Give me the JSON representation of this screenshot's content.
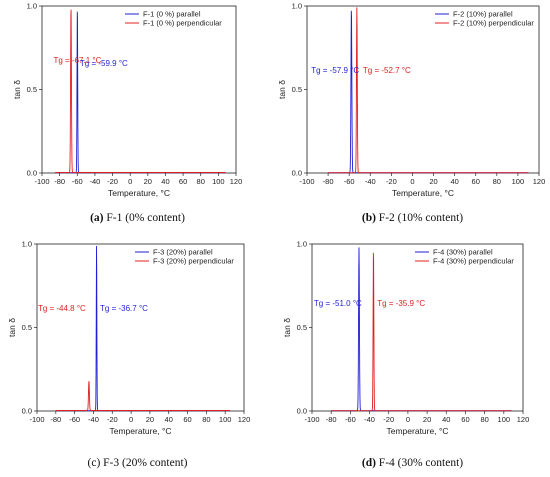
{
  "chart_data": [
    {
      "type": "line",
      "panel": "a",
      "caption_label": "(a)",
      "caption_text": "F-1 (0% content)",
      "xlabel": "Temperature, °C",
      "ylabel": "tan δ",
      "xlim": [
        -100,
        120
      ],
      "ylim": [
        0,
        1.0
      ],
      "xticks": [
        -100,
        -80,
        -60,
        -40,
        -20,
        0,
        20,
        40,
        60,
        80,
        100,
        120
      ],
      "yticks": [
        0.0,
        0.5,
        1.0
      ],
      "legend_position": "top-right",
      "series": [
        {
          "name": "F-1 (0 %) parallel",
          "color": "#1f1fd6",
          "peak_x": -59.9,
          "peak_y": 1.0,
          "width": 1.2,
          "tail": [
            -60,
            108
          ],
          "base": [
            -85,
            0.002
          ]
        },
        {
          "name": "F-1 (0 %) perpendicular",
          "color": "#e02020",
          "peak_x": -67.1,
          "peak_y": 1.0,
          "width": 1.5,
          "tail": [
            -67,
            108
          ],
          "base": [
            -85,
            0.003
          ]
        }
      ],
      "annotations": [
        {
          "text": "Tg = -67.1 °C",
          "color": "#e02020",
          "x": -87,
          "y": 0.66
        },
        {
          "text": "Tg = -59.9 °C",
          "color": "#1f1fd6",
          "x": -57,
          "y": 0.64
        }
      ]
    },
    {
      "type": "line",
      "panel": "b",
      "caption_label": "(b)",
      "caption_text": "F-2 (10% content)",
      "xlabel": "Temperature, °C",
      "ylabel": "tan δ",
      "xlim": [
        -100,
        120
      ],
      "ylim": [
        0,
        1.0
      ],
      "xticks": [
        -100,
        -80,
        -60,
        -40,
        -20,
        0,
        20,
        40,
        60,
        80,
        100,
        120
      ],
      "yticks": [
        0.0,
        0.5,
        1.0
      ],
      "legend_position": "top-right",
      "series": [
        {
          "name": "F-2 (10%) parallel",
          "color": "#1f1fd6",
          "peak_x": -57.9,
          "peak_y": 1.0,
          "width": 1.3,
          "tail": [
            -58,
            110
          ],
          "base": [
            -80,
            0.002
          ]
        },
        {
          "name": "F-2 (10%) perpendicular",
          "color": "#e02020",
          "peak_x": -52.7,
          "peak_y": 1.0,
          "width": 1.2,
          "tail": [
            -53,
            110
          ],
          "base": [
            -80,
            0.002
          ]
        }
      ],
      "annotations": [
        {
          "text": "Tg = -57.9 °C",
          "color": "#1f1fd6",
          "x": -96,
          "y": 0.6
        },
        {
          "text": "Tg = -52.7 °C",
          "color": "#e02020",
          "x": -47,
          "y": 0.6
        }
      ]
    },
    {
      "type": "line",
      "panel": "c",
      "caption_label": "(c)",
      "caption_text": "F-3 (20% content)",
      "xlabel": "Temperature, °C",
      "ylabel": "tan δ",
      "xlim": [
        -100,
        120
      ],
      "ylim": [
        0,
        1.0
      ],
      "xticks": [
        -100,
        -80,
        -60,
        -40,
        -20,
        0,
        20,
        40,
        60,
        80,
        100,
        120
      ],
      "yticks": [
        0.0,
        0.5,
        1.0
      ],
      "legend_position": "top-right",
      "series": [
        {
          "name": "F-3 (20%) parallel",
          "color": "#1f1fd6",
          "peak_x": -36.7,
          "peak_y": 1.0,
          "width": 1.0,
          "tail": [
            -37,
            105
          ],
          "base": [
            -80,
            0.002
          ]
        },
        {
          "name": "F-3 (20%) perpendicular",
          "color": "#e02020",
          "peak_x": -44.8,
          "peak_y": 0.18,
          "width": 1.5,
          "tail": [
            -45,
            105
          ],
          "base": [
            -80,
            0.003
          ]
        }
      ],
      "annotations": [
        {
          "text": "Tg = -44.8 °C",
          "color": "#e02020",
          "x": -99,
          "y": 0.6
        },
        {
          "text": "Tg = -36.7 °C",
          "color": "#1f1fd6",
          "x": -33,
          "y": 0.6
        }
      ]
    },
    {
      "type": "line",
      "panel": "d",
      "caption_label": "(d)",
      "caption_text": "F-4 (30% content)",
      "xlabel": "Temperature, °C",
      "ylabel": "tan δ",
      "xlim": [
        -100,
        120
      ],
      "ylim": [
        0,
        1.0
      ],
      "xticks": [
        -100,
        -80,
        -60,
        -40,
        -20,
        0,
        20,
        40,
        60,
        80,
        100,
        120
      ],
      "yticks": [
        0.0,
        0.5,
        1.0
      ],
      "legend_position": "top-right",
      "series": [
        {
          "name": "F-4 (30%) parallel",
          "color": "#1f1fd6",
          "peak_x": -51.0,
          "peak_y": 0.98,
          "width": 1.4,
          "tail": [
            -51,
            108
          ],
          "base": [
            -80,
            0.002
          ]
        },
        {
          "name": "F-4 (30%) perpendicular",
          "color": "#e02020",
          "peak_x": -35.9,
          "peak_y": 0.98,
          "width": 1.2,
          "tail": [
            -36,
            108
          ],
          "base": [
            -80,
            0.002
          ]
        }
      ],
      "annotations": [
        {
          "text": "Tg = -51.0 °C",
          "color": "#1f1fd6",
          "x": -98,
          "y": 0.63
        },
        {
          "text": "Tg = -35.9 °C",
          "color": "#e02020",
          "x": -32,
          "y": 0.63
        }
      ]
    }
  ]
}
